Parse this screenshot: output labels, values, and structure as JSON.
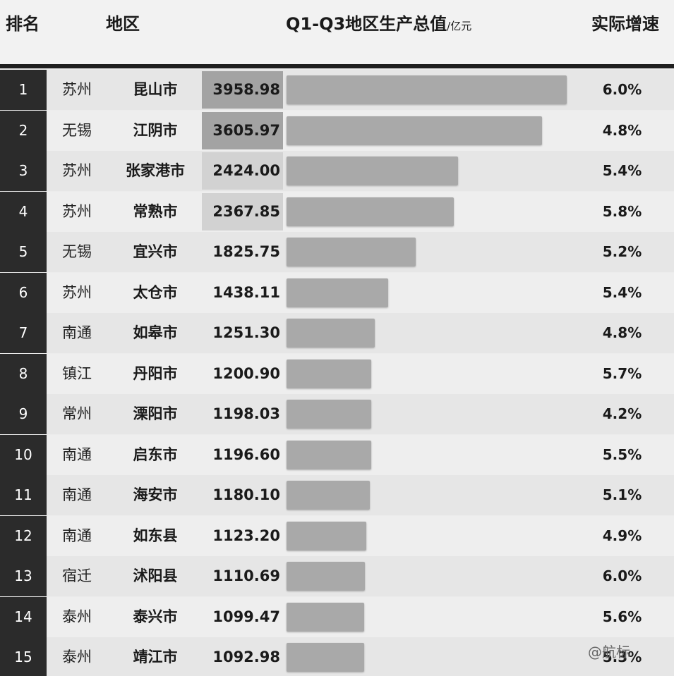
{
  "headers": {
    "rank": "排名",
    "region": "地区",
    "gdp_title": "Q1-Q3地区生产总值",
    "gdp_unit": "/亿元",
    "growth": "实际增速"
  },
  "chart_data": {
    "type": "bar",
    "orientation": "horizontal",
    "max_value": 3958.98,
    "rows": [
      {
        "rank": "1",
        "city": "苏州",
        "region": "昆山市",
        "value": 3958.98,
        "value_label": "3958.98",
        "growth": "6.0%",
        "highlight": "#a3a3a3"
      },
      {
        "rank": "2",
        "city": "无锡",
        "region": "江阴市",
        "value": 3605.97,
        "value_label": "3605.97",
        "growth": "4.8%",
        "highlight": "#a3a3a3"
      },
      {
        "rank": "3",
        "city": "苏州",
        "region": "张家港市",
        "value": 2424.0,
        "value_label": "2424.00",
        "growth": "5.4%",
        "highlight": "#d2d2d2"
      },
      {
        "rank": "4",
        "city": "苏州",
        "region": "常熟市",
        "value": 2367.85,
        "value_label": "2367.85",
        "growth": "5.8%",
        "highlight": "#d2d2d2"
      },
      {
        "rank": "5",
        "city": "无锡",
        "region": "宜兴市",
        "value": 1825.75,
        "value_label": "1825.75",
        "growth": "5.2%",
        "highlight": ""
      },
      {
        "rank": "6",
        "city": "苏州",
        "region": "太仓市",
        "value": 1438.11,
        "value_label": "1438.11",
        "growth": "5.4%",
        "highlight": ""
      },
      {
        "rank": "7",
        "city": "南通",
        "region": "如皋市",
        "value": 1251.3,
        "value_label": "1251.30",
        "growth": "4.8%",
        "highlight": ""
      },
      {
        "rank": "8",
        "city": "镇江",
        "region": "丹阳市",
        "value": 1200.9,
        "value_label": "1200.90",
        "growth": "5.7%",
        "highlight": ""
      },
      {
        "rank": "9",
        "city": "常州",
        "region": "溧阳市",
        "value": 1198.03,
        "value_label": "1198.03",
        "growth": "4.2%",
        "highlight": ""
      },
      {
        "rank": "10",
        "city": "南通",
        "region": "启东市",
        "value": 1196.6,
        "value_label": "1196.60",
        "growth": "5.5%",
        "highlight": ""
      },
      {
        "rank": "11",
        "city": "南通",
        "region": "海安市",
        "value": 1180.1,
        "value_label": "1180.10",
        "growth": "5.1%",
        "highlight": ""
      },
      {
        "rank": "12",
        "city": "南通",
        "region": "如东县",
        "value": 1123.2,
        "value_label": "1123.20",
        "growth": "4.9%",
        "highlight": ""
      },
      {
        "rank": "13",
        "city": "宿迁",
        "region": "沭阳县",
        "value": 1110.69,
        "value_label": "1110.69",
        "growth": "6.0%",
        "highlight": ""
      },
      {
        "rank": "14",
        "city": "泰州",
        "region": "泰兴市",
        "value": 1099.47,
        "value_label": "1099.47",
        "growth": "5.6%",
        "highlight": ""
      },
      {
        "rank": "15",
        "city": "泰州",
        "region": "靖江市",
        "value": 1092.98,
        "value_label": "1092.98",
        "growth": "5.3%",
        "highlight": ""
      }
    ]
  },
  "watermark": "@航标",
  "colors": {
    "rank_bg": "#2b2b2b",
    "bar": "#a9a9a9",
    "header_rule": "#1f1f1f"
  }
}
